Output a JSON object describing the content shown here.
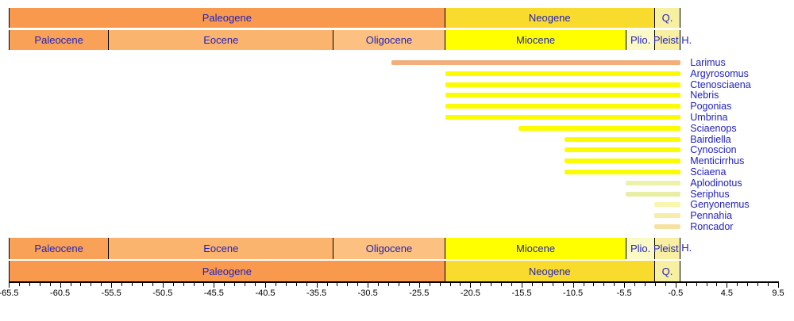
{
  "colors": {
    "label_blue": "#2222BB",
    "axis_black": "#000000",
    "paleogene": "#F8994E",
    "neogene": "#F9DB2D",
    "quaternary": "#F7F0A0",
    "paleocene": "#F9A157",
    "eocene": "#FBB46E",
    "oligocene": "#FCC180",
    "miocene": "#FFFF00",
    "pliocene": "#FBFAC6",
    "pleistocene": "#F8EFA2"
  },
  "axis": {
    "unit": "Ma",
    "min": -65.5,
    "max": 9.5,
    "minor_step": 1,
    "major_step": 5,
    "major_tick_labels": [
      "-65.5",
      "-60.5",
      "-55.5",
      "-50.5",
      "-45.5",
      "-40.5",
      "-35.5",
      "-30.5",
      "-25.5",
      "-20.5",
      "-15.5",
      "-10.5",
      "-5.5",
      "-0.5",
      "4.5",
      "9.5"
    ]
  },
  "period_row": {
    "cells": [
      {
        "label": "Paleogene",
        "start": -65.5,
        "end": -23.03,
        "color_key": "paleogene"
      },
      {
        "label": "Neogene",
        "start": -23.03,
        "end": -2.588,
        "color_key": "neogene"
      },
      {
        "label": "Q.",
        "start": -2.588,
        "end": 0,
        "color_key": "quaternary"
      }
    ]
  },
  "epoch_row": {
    "cells": [
      {
        "label": "Paleocene",
        "start": -65.5,
        "end": -55.8,
        "color_key": "paleocene"
      },
      {
        "label": "Eocene",
        "start": -55.8,
        "end": -33.9,
        "color_key": "eocene"
      },
      {
        "label": "Oligocene",
        "start": -33.9,
        "end": -23.03,
        "color_key": "oligocene"
      },
      {
        "label": "Miocene",
        "start": -23.03,
        "end": -5.33,
        "color_key": "miocene"
      },
      {
        "label": "Plio.",
        "start": -5.33,
        "end": -2.588,
        "color_key": "pliocene"
      },
      {
        "label": "Pleist.",
        "start": -2.588,
        "end": 0,
        "color_key": "pleistocene"
      }
    ],
    "holocene_label": {
      "label": "H.",
      "at": 0
    }
  },
  "chart_data": {
    "type": "bar",
    "orientation": "horizontal-range",
    "unit": "Ma (millions of years, negative = past)",
    "xlim": [
      -65.5,
      9.5
    ],
    "series": [
      {
        "name": "Larimus",
        "start": -28.2,
        "end": 0,
        "color": "#F2AF7C"
      },
      {
        "name": "Argyrosomus",
        "start": -22.9,
        "end": 0,
        "color": "#FCFC00"
      },
      {
        "name": "Ctenosciaena",
        "start": -22.9,
        "end": 0,
        "color": "#FCFC00"
      },
      {
        "name": "Nebris",
        "start": -22.9,
        "end": 0,
        "color": "#FCFC00"
      },
      {
        "name": "Pogonias",
        "start": -22.9,
        "end": 0,
        "color": "#FCFC00"
      },
      {
        "name": "Umbrina",
        "start": -22.9,
        "end": 0,
        "color": "#FCFC00"
      },
      {
        "name": "Sciaenops",
        "start": -15.8,
        "end": 0,
        "color": "#FCFC00"
      },
      {
        "name": "Bairdiella",
        "start": -11.3,
        "end": 0,
        "color": "#FCFC00"
      },
      {
        "name": "Cynoscion",
        "start": -11.3,
        "end": 0,
        "color": "#FCFC00"
      },
      {
        "name": "Menticirrhus",
        "start": -11.3,
        "end": 0,
        "color": "#FCFC00"
      },
      {
        "name": "Sciaena",
        "start": -11.3,
        "end": 0,
        "color": "#FCFC00"
      },
      {
        "name": "Aplodinotus",
        "start": -5.33,
        "end": 0,
        "color": "#EDF1A9"
      },
      {
        "name": "Seriphus",
        "start": -5.33,
        "end": 0,
        "color": "#E8EEA4"
      },
      {
        "name": "Genyonemus",
        "start": -2.588,
        "end": 0,
        "color": "#FAF6AF"
      },
      {
        "name": "Pennahia",
        "start": -2.588,
        "end": 0,
        "color": "#F8ECAC"
      },
      {
        "name": "Roncador",
        "start": -2.588,
        "end": 0,
        "color": "#F5E2A0"
      }
    ]
  }
}
